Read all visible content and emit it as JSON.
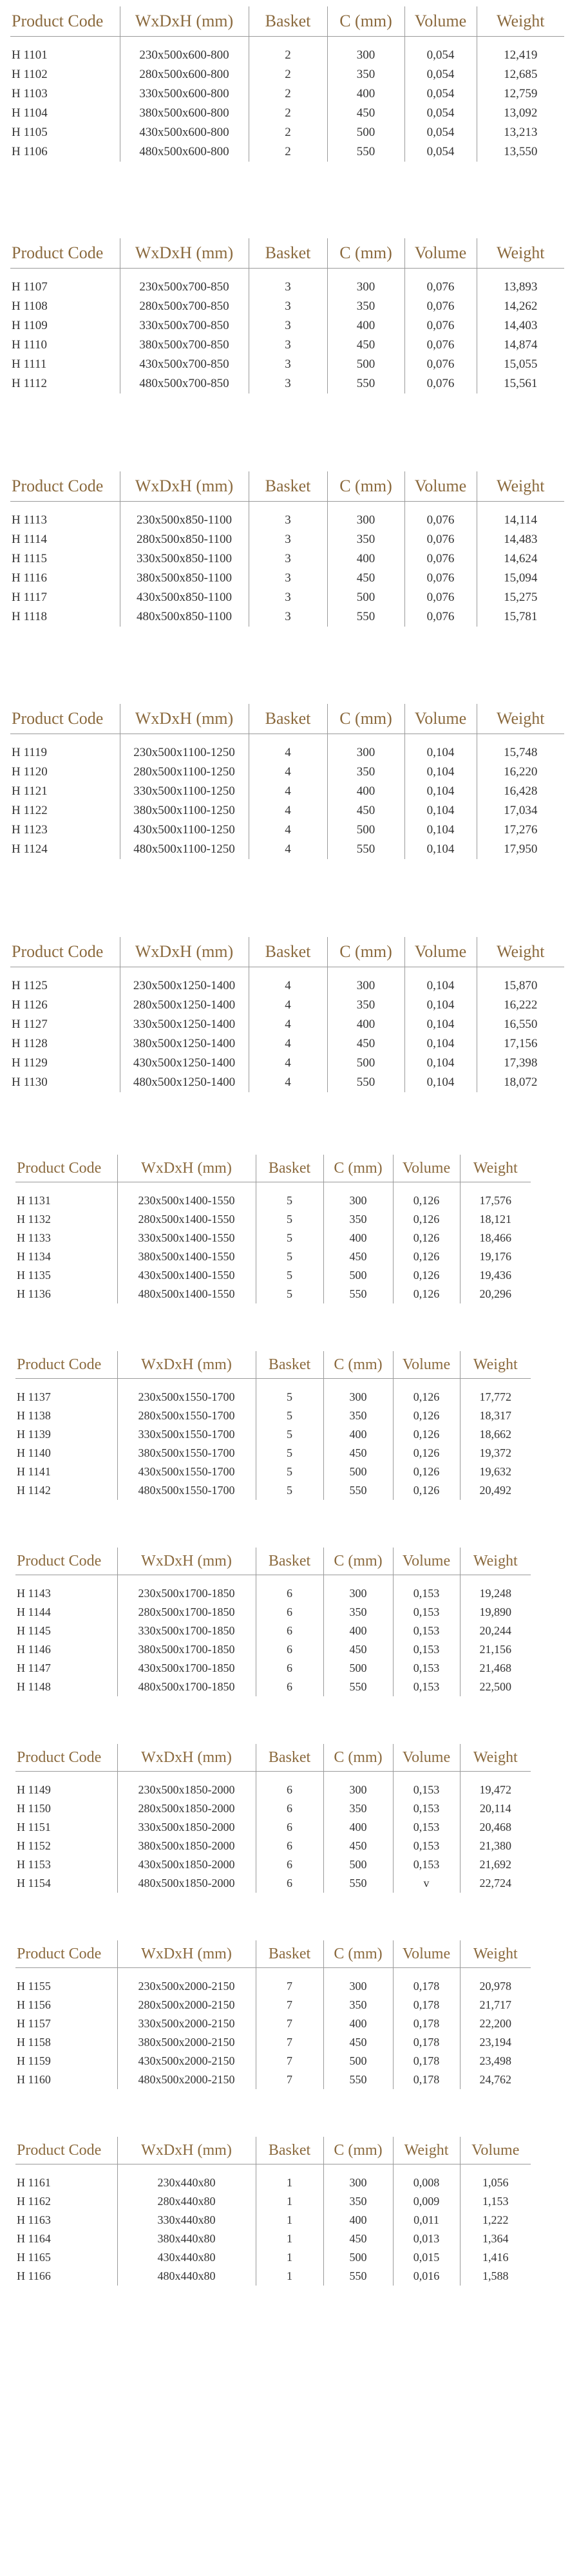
{
  "headers": [
    "Product Code",
    "WxDxH (mm)",
    "Basket",
    "C (mm)",
    "Volume",
    "Weight"
  ],
  "headers_last": [
    "Product Code",
    "WxDxH (mm)",
    "Basket",
    "C (mm)",
    "Weight",
    "Volume"
  ],
  "tables": [
    {
      "rows": [
        [
          "H 1101",
          "230x500x600-800",
          "2",
          "300",
          "0,054",
          "12,419"
        ],
        [
          "H 1102",
          "280x500x600-800",
          "2",
          "350",
          "0,054",
          "12,685"
        ],
        [
          "H 1103",
          "330x500x600-800",
          "2",
          "400",
          "0,054",
          "12,759"
        ],
        [
          "H 1104",
          "380x500x600-800",
          "2",
          "450",
          "0,054",
          "13,092"
        ],
        [
          "H 1105",
          "430x500x600-800",
          "2",
          "500",
          "0,054",
          "13,213"
        ],
        [
          "H 1106",
          "480x500x600-800",
          "2",
          "550",
          "0,054",
          "13,550"
        ]
      ]
    },
    {
      "rows": [
        [
          "H 1107",
          "230x500x700-850",
          "3",
          "300",
          "0,076",
          "13,893"
        ],
        [
          "H 1108",
          "280x500x700-850",
          "3",
          "350",
          "0,076",
          "14,262"
        ],
        [
          "H 1109",
          "330x500x700-850",
          "3",
          "400",
          "0,076",
          "14,403"
        ],
        [
          "H 1110",
          "380x500x700-850",
          "3",
          "450",
          "0,076",
          "14,874"
        ],
        [
          "H 1111",
          "430x500x700-850",
          "3",
          "500",
          "0,076",
          "15,055"
        ],
        [
          "H 1112",
          "480x500x700-850",
          "3",
          "550",
          "0,076",
          "15,561"
        ]
      ]
    },
    {
      "rows": [
        [
          "H 1113",
          "230x500x850-1100",
          "3",
          "300",
          "0,076",
          "14,114"
        ],
        [
          "H 1114",
          "280x500x850-1100",
          "3",
          "350",
          "0,076",
          "14,483"
        ],
        [
          "H 1115",
          "330x500x850-1100",
          "3",
          "400",
          "0,076",
          "14,624"
        ],
        [
          "H 1116",
          "380x500x850-1100",
          "3",
          "450",
          "0,076",
          "15,094"
        ],
        [
          "H 1117",
          "430x500x850-1100",
          "3",
          "500",
          "0,076",
          "15,275"
        ],
        [
          "H 1118",
          "480x500x850-1100",
          "3",
          "550",
          "0,076",
          "15,781"
        ]
      ]
    },
    {
      "rows": [
        [
          "H 1119",
          "230x500x1100-1250",
          "4",
          "300",
          "0,104",
          "15,748"
        ],
        [
          "H 1120",
          "280x500x1100-1250",
          "4",
          "350",
          "0,104",
          "16,220"
        ],
        [
          "H 1121",
          "330x500x1100-1250",
          "4",
          "400",
          "0,104",
          "16,428"
        ],
        [
          "H 1122",
          "380x500x1100-1250",
          "4",
          "450",
          "0,104",
          "17,034"
        ],
        [
          "H 1123",
          "430x500x1100-1250",
          "4",
          "500",
          "0,104",
          "17,276"
        ],
        [
          "H 1124",
          "480x500x1100-1250",
          "4",
          "550",
          "0,104",
          "17,950"
        ]
      ]
    },
    {
      "rows": [
        [
          "H 1125",
          "230x500x1250-1400",
          "4",
          "300",
          "0,104",
          "15,870"
        ],
        [
          "H 1126",
          "280x500x1250-1400",
          "4",
          "350",
          "0,104",
          "16,222"
        ],
        [
          "H 1127",
          "330x500x1250-1400",
          "4",
          "400",
          "0,104",
          "16,550"
        ],
        [
          "H 1128",
          "380x500x1250-1400",
          "4",
          "450",
          "0,104",
          "17,156"
        ],
        [
          "H 1129",
          "430x500x1250-1400",
          "4",
          "500",
          "0,104",
          "17,398"
        ],
        [
          "H 1130",
          "480x500x1250-1400",
          "4",
          "550",
          "0,104",
          "18,072"
        ]
      ]
    },
    {
      "rows": [
        [
          "H 1131",
          "230x500x1400-1550",
          "5",
          "300",
          "0,126",
          "17,576"
        ],
        [
          "H 1132",
          "280x500x1400-1550",
          "5",
          "350",
          "0,126",
          "18,121"
        ],
        [
          "H 1133",
          "330x500x1400-1550",
          "5",
          "400",
          "0,126",
          "18,466"
        ],
        [
          "H 1134",
          "380x500x1400-1550",
          "5",
          "450",
          "0,126",
          "19,176"
        ],
        [
          "H 1135",
          "430x500x1400-1550",
          "5",
          "500",
          "0,126",
          "19,436"
        ],
        [
          "H 1136",
          "480x500x1400-1550",
          "5",
          "550",
          "0,126",
          "20,296"
        ]
      ]
    },
    {
      "rows": [
        [
          "H 1137",
          "230x500x1550-1700",
          "5",
          "300",
          "0,126",
          "17,772"
        ],
        [
          "H 1138",
          "280x500x1550-1700",
          "5",
          "350",
          "0,126",
          "18,317"
        ],
        [
          "H 1139",
          "330x500x1550-1700",
          "5",
          "400",
          "0,126",
          "18,662"
        ],
        [
          "H 1140",
          "380x500x1550-1700",
          "5",
          "450",
          "0,126",
          "19,372"
        ],
        [
          "H 1141",
          "430x500x1550-1700",
          "5",
          "500",
          "0,126",
          "19,632"
        ],
        [
          "H 1142",
          "480x500x1550-1700",
          "5",
          "550",
          "0,126",
          "20,492"
        ]
      ]
    },
    {
      "rows": [
        [
          "H 1143",
          "230x500x1700-1850",
          "6",
          "300",
          "0,153",
          "19,248"
        ],
        [
          "H 1144",
          "280x500x1700-1850",
          "6",
          "350",
          "0,153",
          "19,890"
        ],
        [
          "H 1145",
          "330x500x1700-1850",
          "6",
          "400",
          "0,153",
          "20,244"
        ],
        [
          "H 1146",
          "380x500x1700-1850",
          "6",
          "450",
          "0,153",
          "21,156"
        ],
        [
          "H 1147",
          "430x500x1700-1850",
          "6",
          "500",
          "0,153",
          "21,468"
        ],
        [
          "H 1148",
          "480x500x1700-1850",
          "6",
          "550",
          "0,153",
          "22,500"
        ]
      ]
    },
    {
      "rows": [
        [
          "H 1149",
          "230x500x1850-2000",
          "6",
          "300",
          "0,153",
          "19,472"
        ],
        [
          "H 1150",
          "280x500x1850-2000",
          "6",
          "350",
          "0,153",
          "20,114"
        ],
        [
          "H 1151",
          "330x500x1850-2000",
          "6",
          "400",
          "0,153",
          "20,468"
        ],
        [
          "H 1152",
          "380x500x1850-2000",
          "6",
          "450",
          "0,153",
          "21,380"
        ],
        [
          "H 1153",
          "430x500x1850-2000",
          "6",
          "500",
          "0,153",
          "21,692"
        ],
        [
          "H 1154",
          "480x500x1850-2000",
          "6",
          "550",
          "v",
          "22,724"
        ]
      ]
    },
    {
      "rows": [
        [
          "H 1155",
          "230x500x2000-2150",
          "7",
          "300",
          "0,178",
          "20,978"
        ],
        [
          "H 1156",
          "280x500x2000-2150",
          "7",
          "350",
          "0,178",
          "21,717"
        ],
        [
          "H 1157",
          "330x500x2000-2150",
          "7",
          "400",
          "0,178",
          "22,200"
        ],
        [
          "H 1158",
          "380x500x2000-2150",
          "7",
          "450",
          "0,178",
          "23,194"
        ],
        [
          "H 1159",
          "430x500x2000-2150",
          "7",
          "500",
          "0,178",
          "23,498"
        ],
        [
          "H 1160",
          "480x500x2000-2150",
          "7",
          "550",
          "0,178",
          "24,762"
        ]
      ]
    },
    {
      "rows": [
        [
          "H  1161",
          "230x440x80",
          "1",
          "300",
          "0,008",
          "1,056"
        ],
        [
          "H  1162",
          "280x440x80",
          "1",
          "350",
          "0,009",
          "1,153"
        ],
        [
          "H  1163",
          "330x440x80",
          "1",
          "400",
          "0,011",
          "1,222"
        ],
        [
          "H  1164",
          "380x440x80",
          "1",
          "450",
          "0,013",
          "1,364"
        ],
        [
          "H  1165",
          "430x440x80",
          "1",
          "500",
          "0,015",
          "1,416"
        ],
        [
          "H  1166",
          "480x440x80",
          "1",
          "550",
          "0,016",
          "1,588"
        ]
      ]
    }
  ]
}
